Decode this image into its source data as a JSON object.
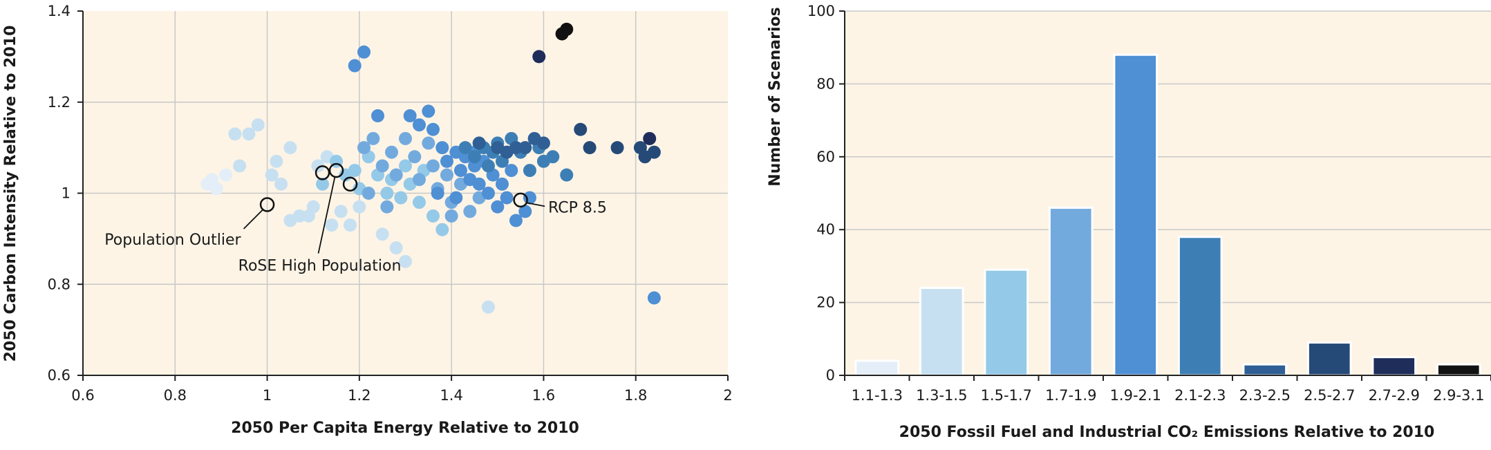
{
  "colors": {
    "plot_bg": "#fdf4e6",
    "grid": "#c8c8c8",
    "axis": "#222222",
    "ramp": [
      "#e3eef8",
      "#c7e0f1",
      "#95c9e8",
      "#73aade",
      "#4f8fd4",
      "#3d7fb5",
      "#2f5f95",
      "#254a78",
      "#1f2d5b",
      "#111111"
    ]
  },
  "chart_data": [
    {
      "type": "scatter",
      "title": "",
      "xlabel": "2050 Per Capita Energy Relative to 2010",
      "ylabel": "2050 Carbon Intensity Relative to 2010",
      "xlim": [
        0.6,
        2.0
      ],
      "ylim": [
        0.6,
        1.4
      ],
      "xticks": [
        "0.6",
        "0.8",
        "1",
        "1.2",
        "1.4",
        "1.6",
        "1.8",
        "2"
      ],
      "yticks": [
        "0.6",
        "0.8",
        "1",
        "1.2",
        "1.4"
      ],
      "grid": true,
      "annotations": [
        {
          "text": "Population Outlier",
          "x": 1.0,
          "y": 0.975
        },
        {
          "text": "RoSE High Population",
          "x": 1.15,
          "y": 1.05
        },
        {
          "text": "RCP 8.5",
          "x": 1.55,
          "y": 0.985
        }
      ],
      "highlighted_points": [
        {
          "x": 1.0,
          "y": 0.975
        },
        {
          "x": 1.12,
          "y": 1.045
        },
        {
          "x": 1.15,
          "y": 1.05
        },
        {
          "x": 1.18,
          "y": 1.02
        },
        {
          "x": 1.55,
          "y": 0.985
        }
      ],
      "points": [
        {
          "x": 0.87,
          "y": 1.02,
          "c": 0
        },
        {
          "x": 0.88,
          "y": 1.03,
          "c": 0
        },
        {
          "x": 0.89,
          "y": 1.01,
          "c": 0
        },
        {
          "x": 0.91,
          "y": 1.04,
          "c": 0
        },
        {
          "x": 0.93,
          "y": 1.13,
          "c": 1
        },
        {
          "x": 0.94,
          "y": 1.06,
          "c": 1
        },
        {
          "x": 0.96,
          "y": 1.13,
          "c": 1
        },
        {
          "x": 0.98,
          "y": 1.15,
          "c": 1
        },
        {
          "x": 1.01,
          "y": 1.04,
          "c": 1
        },
        {
          "x": 1.02,
          "y": 1.07,
          "c": 1
        },
        {
          "x": 1.03,
          "y": 1.02,
          "c": 1
        },
        {
          "x": 1.05,
          "y": 1.1,
          "c": 1
        },
        {
          "x": 1.05,
          "y": 0.94,
          "c": 1
        },
        {
          "x": 1.07,
          "y": 0.95,
          "c": 1
        },
        {
          "x": 1.09,
          "y": 0.95,
          "c": 1
        },
        {
          "x": 1.1,
          "y": 0.97,
          "c": 1
        },
        {
          "x": 1.11,
          "y": 1.06,
          "c": 1
        },
        {
          "x": 1.13,
          "y": 1.08,
          "c": 1
        },
        {
          "x": 1.14,
          "y": 0.93,
          "c": 1
        },
        {
          "x": 1.16,
          "y": 0.96,
          "c": 1
        },
        {
          "x": 1.18,
          "y": 0.93,
          "c": 1
        },
        {
          "x": 1.2,
          "y": 0.97,
          "c": 1
        },
        {
          "x": 1.25,
          "y": 0.91,
          "c": 1
        },
        {
          "x": 1.28,
          "y": 0.88,
          "c": 1
        },
        {
          "x": 1.3,
          "y": 0.85,
          "c": 1
        },
        {
          "x": 1.48,
          "y": 0.75,
          "c": 1
        },
        {
          "x": 1.12,
          "y": 1.02,
          "c": 2
        },
        {
          "x": 1.15,
          "y": 1.07,
          "c": 2
        },
        {
          "x": 1.17,
          "y": 1.04,
          "c": 2
        },
        {
          "x": 1.19,
          "y": 1.05,
          "c": 2
        },
        {
          "x": 1.2,
          "y": 1.01,
          "c": 2
        },
        {
          "x": 1.22,
          "y": 1.08,
          "c": 2
        },
        {
          "x": 1.24,
          "y": 1.04,
          "c": 2
        },
        {
          "x": 1.26,
          "y": 1.0,
          "c": 2
        },
        {
          "x": 1.27,
          "y": 1.03,
          "c": 2
        },
        {
          "x": 1.29,
          "y": 0.99,
          "c": 2
        },
        {
          "x": 1.31,
          "y": 1.02,
          "c": 2
        },
        {
          "x": 1.33,
          "y": 0.98,
          "c": 2
        },
        {
          "x": 1.36,
          "y": 0.95,
          "c": 2
        },
        {
          "x": 1.38,
          "y": 0.92,
          "c": 2
        },
        {
          "x": 1.3,
          "y": 1.06,
          "c": 2
        },
        {
          "x": 1.34,
          "y": 1.05,
          "c": 2
        },
        {
          "x": 1.21,
          "y": 1.1,
          "c": 3
        },
        {
          "x": 1.23,
          "y": 1.12,
          "c": 3
        },
        {
          "x": 1.25,
          "y": 1.06,
          "c": 3
        },
        {
          "x": 1.27,
          "y": 1.09,
          "c": 3
        },
        {
          "x": 1.28,
          "y": 1.04,
          "c": 3
        },
        {
          "x": 1.3,
          "y": 1.12,
          "c": 3
        },
        {
          "x": 1.32,
          "y": 1.08,
          "c": 3
        },
        {
          "x": 1.33,
          "y": 1.03,
          "c": 3
        },
        {
          "x": 1.35,
          "y": 1.11,
          "c": 3
        },
        {
          "x": 1.36,
          "y": 1.06,
          "c": 3
        },
        {
          "x": 1.37,
          "y": 1.01,
          "c": 3
        },
        {
          "x": 1.39,
          "y": 1.04,
          "c": 3
        },
        {
          "x": 1.4,
          "y": 0.98,
          "c": 3
        },
        {
          "x": 1.42,
          "y": 1.02,
          "c": 3
        },
        {
          "x": 1.44,
          "y": 0.96,
          "c": 3
        },
        {
          "x": 1.46,
          "y": 0.99,
          "c": 3
        },
        {
          "x": 1.22,
          "y": 1.0,
          "c": 3
        },
        {
          "x": 1.26,
          "y": 0.97,
          "c": 3
        },
        {
          "x": 1.4,
          "y": 0.95,
          "c": 3
        },
        {
          "x": 1.19,
          "y": 1.28,
          "c": 4
        },
        {
          "x": 1.21,
          "y": 1.31,
          "c": 4
        },
        {
          "x": 1.24,
          "y": 1.17,
          "c": 4
        },
        {
          "x": 1.31,
          "y": 1.17,
          "c": 4
        },
        {
          "x": 1.33,
          "y": 1.15,
          "c": 4
        },
        {
          "x": 1.35,
          "y": 1.18,
          "c": 4
        },
        {
          "x": 1.36,
          "y": 1.14,
          "c": 4
        },
        {
          "x": 1.38,
          "y": 1.1,
          "c": 4
        },
        {
          "x": 1.39,
          "y": 1.07,
          "c": 4
        },
        {
          "x": 1.41,
          "y": 1.09,
          "c": 4
        },
        {
          "x": 1.42,
          "y": 1.05,
          "c": 4
        },
        {
          "x": 1.43,
          "y": 1.08,
          "c": 4
        },
        {
          "x": 1.44,
          "y": 1.03,
          "c": 4
        },
        {
          "x": 1.45,
          "y": 1.06,
          "c": 4
        },
        {
          "x": 1.46,
          "y": 1.02,
          "c": 4
        },
        {
          "x": 1.47,
          "y": 1.07,
          "c": 4
        },
        {
          "x": 1.48,
          "y": 1.0,
          "c": 4
        },
        {
          "x": 1.49,
          "y": 1.04,
          "c": 4
        },
        {
          "x": 1.5,
          "y": 0.97,
          "c": 4
        },
        {
          "x": 1.51,
          "y": 1.02,
          "c": 4
        },
        {
          "x": 1.52,
          "y": 0.99,
          "c": 4
        },
        {
          "x": 1.53,
          "y": 1.05,
          "c": 4
        },
        {
          "x": 1.54,
          "y": 0.94,
          "c": 4
        },
        {
          "x": 1.56,
          "y": 0.96,
          "c": 4
        },
        {
          "x": 1.57,
          "y": 0.99,
          "c": 4
        },
        {
          "x": 1.37,
          "y": 1.0,
          "c": 4
        },
        {
          "x": 1.41,
          "y": 0.99,
          "c": 4
        },
        {
          "x": 1.45,
          "y": 1.09,
          "c": 4
        },
        {
          "x": 1.84,
          "y": 0.77,
          "c": 4
        },
        {
          "x": 1.43,
          "y": 1.1,
          "c": 5
        },
        {
          "x": 1.45,
          "y": 1.08,
          "c": 5
        },
        {
          "x": 1.47,
          "y": 1.1,
          "c": 5
        },
        {
          "x": 1.48,
          "y": 1.06,
          "c": 5
        },
        {
          "x": 1.49,
          "y": 1.09,
          "c": 5
        },
        {
          "x": 1.5,
          "y": 1.11,
          "c": 5
        },
        {
          "x": 1.51,
          "y": 1.07,
          "c": 5
        },
        {
          "x": 1.52,
          "y": 1.09,
          "c": 5
        },
        {
          "x": 1.53,
          "y": 1.12,
          "c": 5
        },
        {
          "x": 1.55,
          "y": 1.09,
          "c": 5
        },
        {
          "x": 1.57,
          "y": 1.05,
          "c": 5
        },
        {
          "x": 1.59,
          "y": 1.1,
          "c": 5
        },
        {
          "x": 1.6,
          "y": 1.07,
          "c": 5
        },
        {
          "x": 1.62,
          "y": 1.08,
          "c": 5
        },
        {
          "x": 1.65,
          "y": 1.04,
          "c": 5
        },
        {
          "x": 1.46,
          "y": 1.11,
          "c": 6
        },
        {
          "x": 1.5,
          "y": 1.1,
          "c": 6
        },
        {
          "x": 1.52,
          "y": 1.09,
          "c": 6
        },
        {
          "x": 1.54,
          "y": 1.1,
          "c": 6
        },
        {
          "x": 1.56,
          "y": 1.1,
          "c": 6
        },
        {
          "x": 1.6,
          "y": 1.11,
          "c": 6
        },
        {
          "x": 1.58,
          "y": 1.12,
          "c": 6
        },
        {
          "x": 1.68,
          "y": 1.14,
          "c": 7
        },
        {
          "x": 1.7,
          "y": 1.1,
          "c": 7
        },
        {
          "x": 1.76,
          "y": 1.1,
          "c": 7
        },
        {
          "x": 1.81,
          "y": 1.1,
          "c": 7
        },
        {
          "x": 1.82,
          "y": 1.08,
          "c": 7
        },
        {
          "x": 1.84,
          "y": 1.09,
          "c": 7
        },
        {
          "x": 1.59,
          "y": 1.3,
          "c": 8
        },
        {
          "x": 1.83,
          "y": 1.12,
          "c": 8
        },
        {
          "x": 1.64,
          "y": 1.35,
          "c": 9
        },
        {
          "x": 1.65,
          "y": 1.36,
          "c": 9
        }
      ]
    },
    {
      "type": "bar",
      "title": "",
      "xlabel": "2050 Fossil Fuel and Industrial CO₂ Emissions Relative to 2010",
      "ylabel": "Number of Scenarios",
      "ylim": [
        0,
        100
      ],
      "yticks": [
        "0",
        "20",
        "40",
        "60",
        "80",
        "100"
      ],
      "categories": [
        "1.1-1.3",
        "1.3-1.5",
        "1.5-1.7",
        "1.7-1.9",
        "1.9-2.1",
        "2.1-2.3",
        "2.3-2.5",
        "2.5-2.7",
        "2.7-2.9",
        "2.9-3.1"
      ],
      "values": [
        4,
        24,
        29,
        46,
        88,
        38,
        3,
        9,
        5,
        3
      ],
      "grid": true
    }
  ]
}
